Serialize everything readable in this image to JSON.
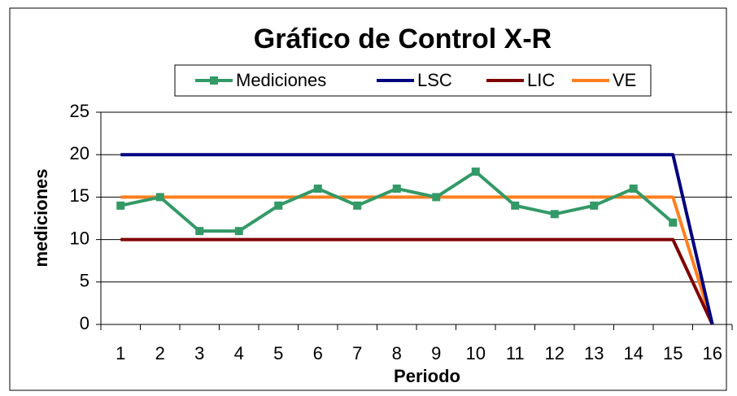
{
  "chart_data": {
    "type": "line",
    "title": "Gráfico de Control X-R",
    "x_label": "Periodo",
    "y_label": "mediciones",
    "categories": [
      "1",
      "2",
      "3",
      "4",
      "5",
      "6",
      "7",
      "8",
      "9",
      "10",
      "11",
      "12",
      "13",
      "14",
      "15",
      "16"
    ],
    "series": [
      {
        "name": "Mediciones",
        "color": "#339966",
        "marker": "square",
        "values": [
          14,
          15,
          11,
          11,
          14,
          16,
          14,
          16,
          15,
          18,
          14,
          13,
          14,
          16,
          12,
          null
        ]
      },
      {
        "name": "LSC",
        "color": "#000080",
        "values": [
          20,
          20,
          20,
          20,
          20,
          20,
          20,
          20,
          20,
          20,
          20,
          20,
          20,
          20,
          20,
          0
        ]
      },
      {
        "name": "LIC",
        "color": "#800000",
        "values": [
          10,
          10,
          10,
          10,
          10,
          10,
          10,
          10,
          10,
          10,
          10,
          10,
          10,
          10,
          10,
          0
        ]
      },
      {
        "name": "VE",
        "color": "#ff7f1e",
        "values": [
          15,
          15,
          15,
          15,
          15,
          15,
          15,
          15,
          15,
          15,
          15,
          15,
          15,
          15,
          15,
          0
        ]
      }
    ],
    "ylim": [
      0,
      25
    ],
    "yticks": [
      0,
      5,
      10,
      15,
      20,
      25
    ],
    "grid": true,
    "legend": "top"
  }
}
